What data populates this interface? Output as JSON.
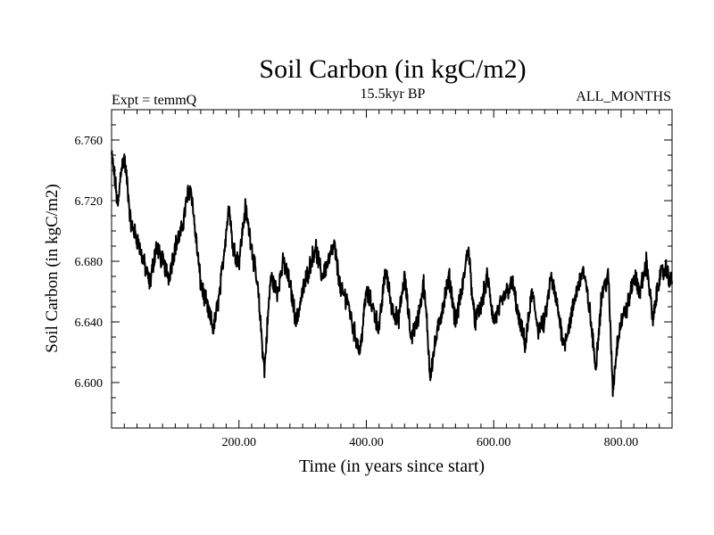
{
  "chart_data": {
    "type": "line",
    "title": "Soil Carbon (in kgC/m2)",
    "subtitle": "15.5kyr BP",
    "left_label": "Expt = temmQ",
    "right_label": "ALL_MONTHS",
    "xlabel": "Time (in years since start)",
    "ylabel": "Soil Carbon (in kgC/m2)",
    "xlim": [
      0,
      880
    ],
    "ylim": [
      6.57,
      6.78
    ],
    "x_ticks": [
      200,
      400,
      600,
      800
    ],
    "x_tick_labels": [
      "200.00",
      "400.00",
      "600.00",
      "800.00"
    ],
    "y_ticks": [
      6.6,
      6.64,
      6.68,
      6.72,
      6.76
    ],
    "y_tick_labels": [
      "6.600",
      "6.640",
      "6.680",
      "6.720",
      "6.760"
    ],
    "series": [
      {
        "name": "Soil Carbon",
        "color": "#000000",
        "x": [
          0,
          5,
          10,
          15,
          20,
          25,
          30,
          40,
          50,
          60,
          70,
          80,
          90,
          100,
          110,
          120,
          125,
          130,
          140,
          150,
          160,
          170,
          180,
          185,
          190,
          200,
          210,
          220,
          230,
          240,
          245,
          250,
          260,
          270,
          280,
          290,
          300,
          310,
          320,
          330,
          340,
          350,
          360,
          370,
          380,
          390,
          400,
          410,
          420,
          430,
          440,
          450,
          460,
          470,
          480,
          490,
          495,
          500,
          510,
          520,
          530,
          540,
          550,
          560,
          570,
          580,
          590,
          600,
          610,
          620,
          630,
          640,
          650,
          660,
          670,
          680,
          690,
          700,
          710,
          720,
          730,
          740,
          750,
          760,
          770,
          780,
          787,
          795,
          800,
          810,
          820,
          830,
          840,
          850,
          860,
          870,
          880
        ],
        "values": [
          6.75,
          6.735,
          6.715,
          6.742,
          6.748,
          6.73,
          6.705,
          6.695,
          6.68,
          6.665,
          6.69,
          6.68,
          6.67,
          6.69,
          6.7,
          6.725,
          6.728,
          6.705,
          6.665,
          6.65,
          6.635,
          6.66,
          6.7,
          6.718,
          6.69,
          6.68,
          6.715,
          6.69,
          6.66,
          6.607,
          6.64,
          6.67,
          6.66,
          6.68,
          6.665,
          6.64,
          6.66,
          6.675,
          6.69,
          6.67,
          6.68,
          6.69,
          6.66,
          6.655,
          6.635,
          6.62,
          6.66,
          6.65,
          6.635,
          6.675,
          6.65,
          6.64,
          6.67,
          6.63,
          6.64,
          6.665,
          6.64,
          6.605,
          6.63,
          6.65,
          6.67,
          6.64,
          6.66,
          6.69,
          6.64,
          6.65,
          6.67,
          6.64,
          6.65,
          6.66,
          6.665,
          6.64,
          6.625,
          6.66,
          6.635,
          6.64,
          6.67,
          6.65,
          6.625,
          6.64,
          6.66,
          6.675,
          6.65,
          6.61,
          6.66,
          6.67,
          6.595,
          6.63,
          6.64,
          6.65,
          6.67,
          6.66,
          6.68,
          6.64,
          6.67,
          6.675,
          6.665
        ]
      }
    ]
  }
}
